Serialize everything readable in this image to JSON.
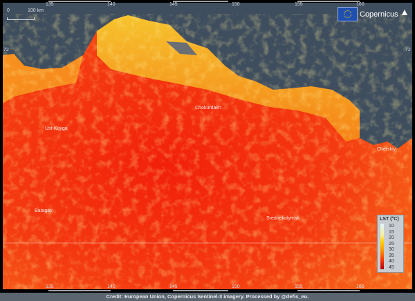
{
  "map": {
    "lon_ticks": [
      "135",
      "140",
      "145",
      "150",
      "155",
      "160"
    ],
    "lat_ticks": [
      "72"
    ],
    "scale_bar": {
      "start": "0",
      "end": "100 km"
    },
    "places": [
      "Ust-Kuyga",
      "Chokurdakh",
      "Batagay",
      "Srednekolymsk",
      "Cherskiy"
    ],
    "ocean_color": "#3f4e5e",
    "north_arrow": "north-arrow-icon"
  },
  "logo": {
    "text": "Copernicus"
  },
  "legend": {
    "title": "LST (°C)",
    "values": [
      "10",
      "15",
      "20",
      "25",
      "30",
      "35",
      "40",
      "45"
    ],
    "colors": [
      "#dff6ff",
      "#f5f0a0",
      "#ffd000",
      "#ff9a00",
      "#ff3b00",
      "#b00010"
    ]
  },
  "credit": "Credit: European Union, Copernicus Sentinel-3 imagery. Processed by @defis_eu."
}
